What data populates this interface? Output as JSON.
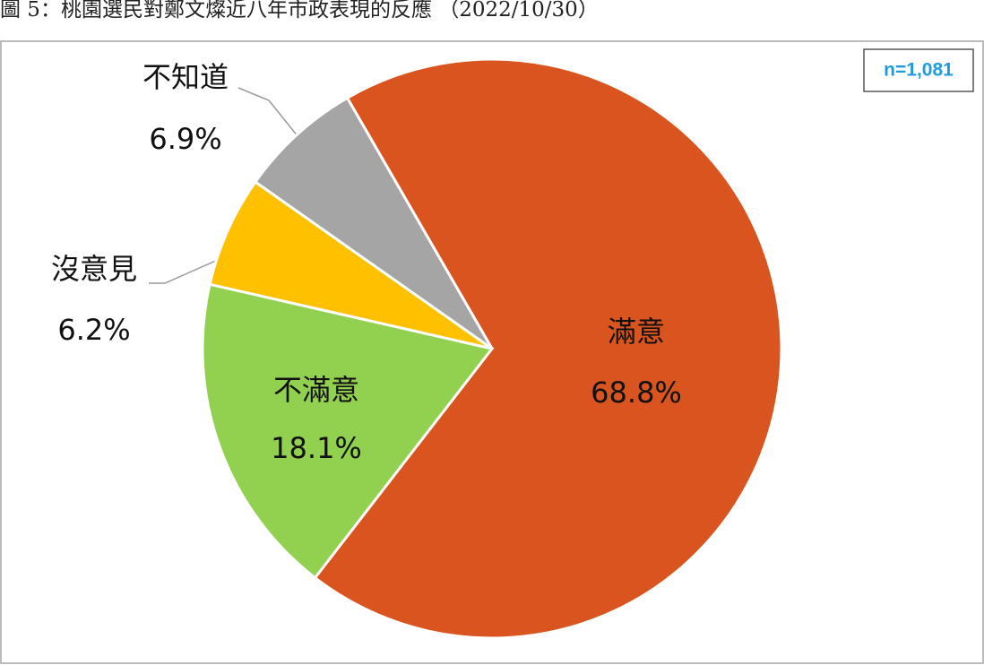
{
  "chart_data": {
    "type": "pie",
    "title": "圖 5：桃園選民對鄭文燦近八年市政表現的反應 （2022/10/30）",
    "annotation": "n=1,081",
    "categories": [
      "滿意",
      "不滿意",
      "沒意見",
      "不知道"
    ],
    "values": [
      68.8,
      18.1,
      6.2,
      6.9
    ],
    "value_labels": [
      "68.8%",
      "18.1%",
      "6.2%",
      "6.9%"
    ],
    "colors": [
      "#d9541e",
      "#92d050",
      "#ffc000",
      "#a5a5a5"
    ]
  }
}
